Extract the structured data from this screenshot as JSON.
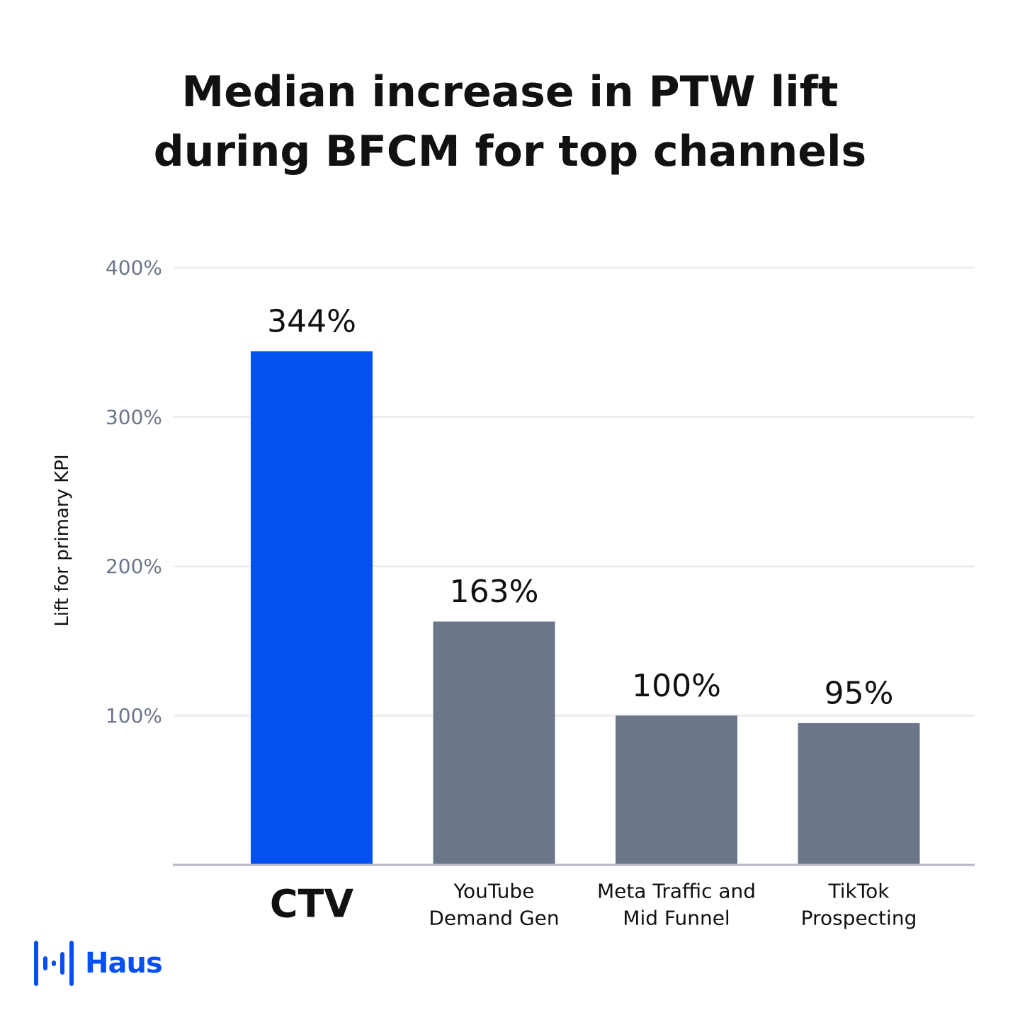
{
  "chart_data": {
    "type": "bar",
    "title_lines": [
      "Median increase in PTW lift",
      "during BFCM for top channels"
    ],
    "ylabel": "Lift for primary KPI",
    "ylim": [
      0,
      400
    ],
    "yticks": [
      100,
      200,
      300,
      400
    ],
    "ytick_labels": [
      "100%",
      "200%",
      "300%",
      "400%"
    ],
    "grid": true,
    "categories": [
      [
        "CTV"
      ],
      [
        "YouTube",
        "Demand Gen"
      ],
      [
        "Meta Traffic and",
        "Mid Funnel"
      ],
      [
        "TikTok",
        "Prospecting"
      ]
    ],
    "values": [
      344,
      163,
      100,
      95
    ],
    "value_labels": [
      "344%",
      "163%",
      "100%",
      "95%"
    ],
    "highlight_index": 0,
    "colors": {
      "highlight": "#0550f0",
      "bar": "#6b7789",
      "grid": "#ededf0",
      "axis": "#b4b8c2",
      "tick_text": "#6b7789",
      "text": "#111111"
    }
  },
  "brand": {
    "name": "Haus",
    "color": "#0550f0",
    "icon": "haus-logo-icon"
  }
}
